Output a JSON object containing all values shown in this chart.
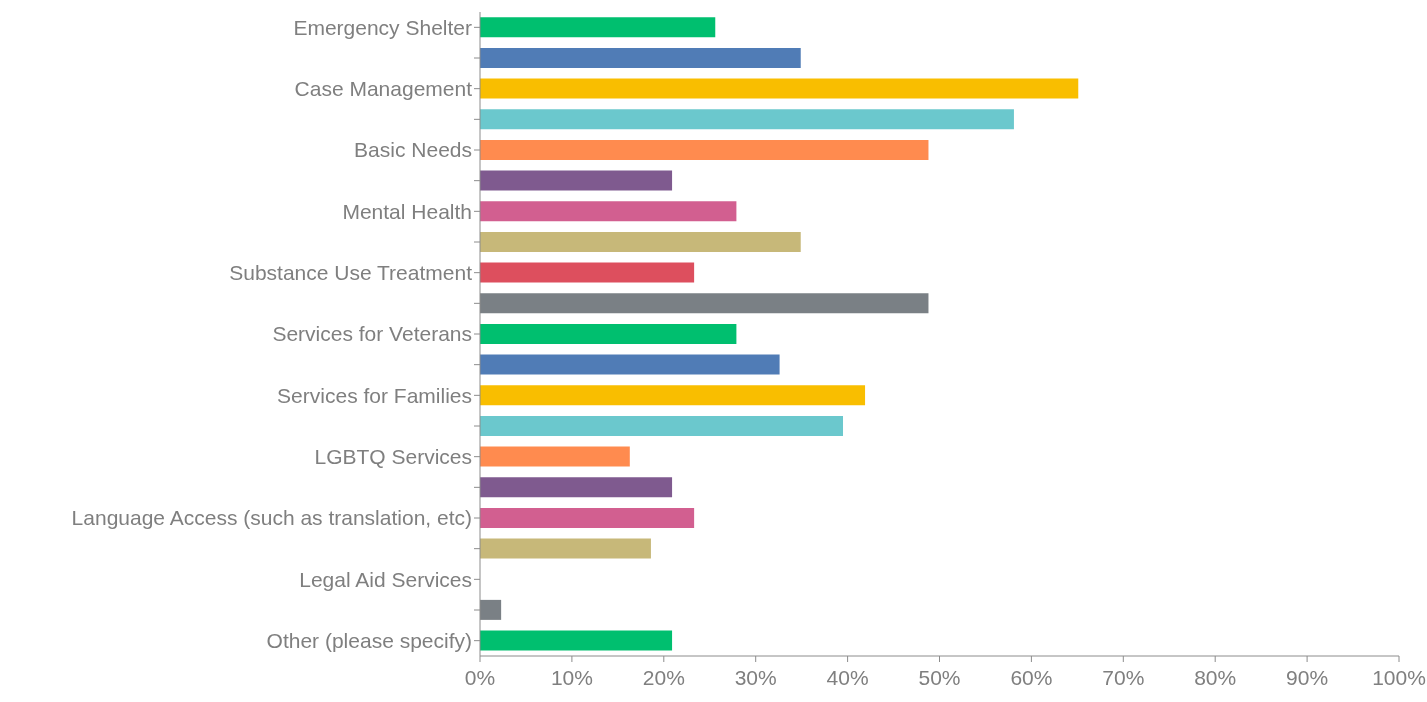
{
  "chart_data": {
    "type": "bar",
    "orientation": "horizontal",
    "categories": [
      "Emergency Shelter",
      null,
      "Case Management",
      null,
      "Basic Needs",
      null,
      "Mental Health",
      null,
      "Substance Use Treatment",
      null,
      "Services for Veterans",
      null,
      "Services for Families",
      null,
      "LGBTQ Services",
      null,
      "Language Access (such as translation, etc)",
      null,
      "Legal Aid Services",
      null,
      "Other (please specify)"
    ],
    "values": [
      25.6,
      34.9,
      65.1,
      58.1,
      48.8,
      20.9,
      27.9,
      34.9,
      23.3,
      48.8,
      27.9,
      32.6,
      41.9,
      39.5,
      16.3,
      20.9,
      23.3,
      18.6,
      0,
      2.3,
      20.9
    ],
    "colors": [
      "#00bf6f",
      "#507cb6",
      "#f9be00",
      "#6bc8cd",
      "#ff8b4f",
      "#7f5a8f",
      "#d25f90",
      "#c7b879",
      "#dd4f5e",
      "#7a8085",
      "#00bf6f",
      "#507cb6",
      "#f9be00",
      "#6bc8cd",
      "#ff8b4f",
      "#7f5a8f",
      "#d25f90",
      "#c7b879",
      "#dd4f5e",
      "#7a8085",
      "#00bf6f"
    ],
    "xlim": [
      0,
      100
    ],
    "xticks": [
      {
        "value": 0,
        "label": "0%"
      },
      {
        "value": 10,
        "label": "10%"
      },
      {
        "value": 20,
        "label": "20%"
      },
      {
        "value": 30,
        "label": "30%"
      },
      {
        "value": 40,
        "label": "40%"
      },
      {
        "value": 50,
        "label": "50%"
      },
      {
        "value": 60,
        "label": "60%"
      },
      {
        "value": 70,
        "label": "70%"
      },
      {
        "value": 80,
        "label": "80%"
      },
      {
        "value": 90,
        "label": "90%"
      },
      {
        "value": 100,
        "label": "100%"
      }
    ],
    "grid": false
  }
}
